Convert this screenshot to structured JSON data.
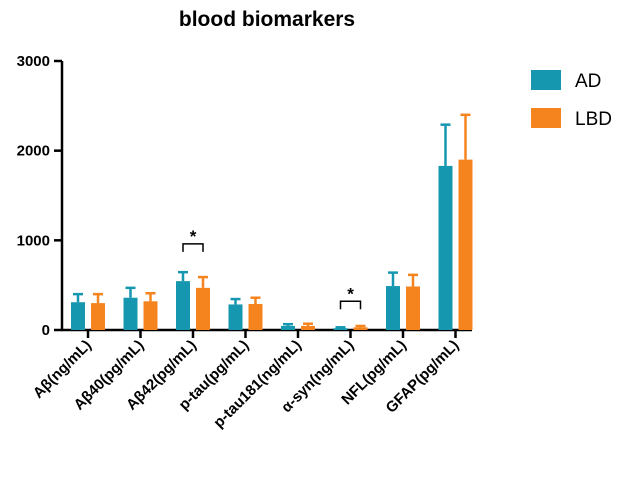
{
  "chart_data": {
    "type": "bar",
    "title": "blood biomarkers",
    "xlabel": "",
    "ylabel": "",
    "ylim": [
      0,
      3000
    ],
    "yticks": [
      0,
      1000,
      2000,
      3000
    ],
    "ytick_labels": [
      "0",
      "1000",
      "2000",
      "3000"
    ],
    "categories": [
      "Aβ(ng/mL)",
      "Aβ40(pg/mL)",
      "Aβ42(pg/mL)",
      "p-tau(pg/mL)",
      "p-tau181(ng/mL)",
      "α-syn(ng/mL)",
      "NFL(pg/mL)",
      "GFAP(pg/mL)"
    ],
    "series": [
      {
        "name": "AD",
        "color": "#1597b0",
        "values": [
          310,
          360,
          545,
          285,
          45,
          20,
          490,
          1830
        ],
        "errors": [
          90,
          110,
          100,
          60,
          20,
          10,
          150,
          460
        ]
      },
      {
        "name": "LBD",
        "color": "#f5841f",
        "values": [
          300,
          320,
          470,
          290,
          45,
          30,
          485,
          1900
        ],
        "errors": [
          100,
          90,
          120,
          70,
          25,
          15,
          130,
          500
        ]
      }
    ],
    "annotations": [
      {
        "category_index": 2,
        "text": "*",
        "y_value": 960
      },
      {
        "category_index": 5,
        "text": "*",
        "y_value": 320
      }
    ],
    "legend_position": "top-right",
    "grid": false
  }
}
